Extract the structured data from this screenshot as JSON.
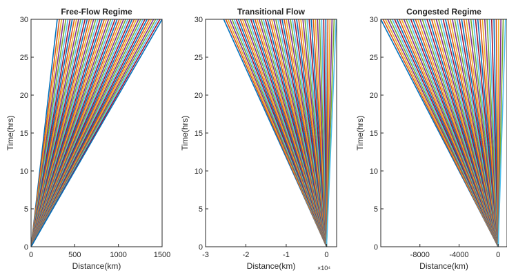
{
  "chart_data": [
    {
      "type": "line",
      "title": "Free-Flow Regime",
      "xlabel": "Distance(km)",
      "ylabel": "Time(hrs)",
      "xlim": [
        0,
        1500
      ],
      "ylim": [
        0,
        30
      ],
      "x_ticks": [
        0,
        500,
        1000,
        1500
      ],
      "x_tick_labels": [
        "0",
        "500",
        "1000",
        "1500"
      ],
      "y_ticks": [
        0,
        5,
        10,
        15,
        20,
        25,
        30
      ],
      "y_tick_labels": [
        "0",
        "5",
        "10",
        "15",
        "20",
        "25",
        "30"
      ],
      "trajectory_family": "vehicle trajectories fanning from the origin",
      "speed_range_kmh": [
        10,
        50
      ],
      "line_count": 50,
      "grid": false,
      "legend": "none"
    },
    {
      "type": "line",
      "title": "Transitional Flow",
      "xlabel": "Distance(km)",
      "ylabel": "Time(hrs)",
      "xlim": [
        -30000,
        2500
      ],
      "ylim": [
        0,
        30
      ],
      "x_ticks": [
        -30000,
        -20000,
        -10000,
        0
      ],
      "x_tick_labels": [
        "-3",
        "-2",
        "-1",
        "0"
      ],
      "x_exponent": "×10⁴",
      "y_ticks": [
        0,
        5,
        10,
        15,
        20,
        25,
        30
      ],
      "y_tick_labels": [
        "0",
        "5",
        "10",
        "15",
        "20",
        "25",
        "30"
      ],
      "trajectory_family": "backward-travelling trajectories spreading from the origin",
      "speed_range_kmh": [
        -850,
        80
      ],
      "line_count": 55,
      "grid": false,
      "legend": "none"
    },
    {
      "type": "line",
      "title": "Congested Regime",
      "xlabel": "Distance(km)",
      "ylabel": "Time(hrs)",
      "xlim": [
        -12000,
        900
      ],
      "ylim": [
        0,
        30
      ],
      "x_ticks": [
        -8000,
        -4000,
        0
      ],
      "x_tick_labels": [
        "-8000",
        "-4000",
        "0"
      ],
      "y_ticks": [
        0,
        5,
        10,
        15,
        20,
        25,
        30
      ],
      "y_tick_labels": [
        "0",
        "5",
        "10",
        "15",
        "20",
        "25",
        "30"
      ],
      "trajectory_family": "backward-travelling trajectories spreading from the origin",
      "speed_range_kmh": [
        -400,
        25
      ],
      "line_count": 55,
      "grid": false,
      "legend": "none"
    }
  ],
  "colors": [
    "#0072bd",
    "#d95319",
    "#edb120",
    "#7e2f8e",
    "#77ac30",
    "#4dbeee",
    "#a2142f"
  ],
  "axis_color": "#262626"
}
